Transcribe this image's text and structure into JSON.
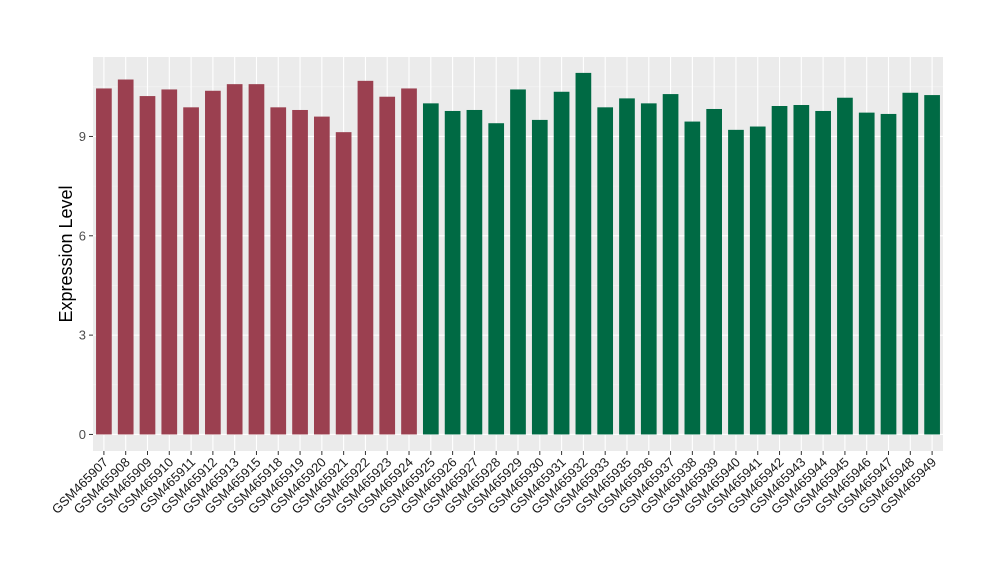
{
  "chart_data": {
    "type": "bar",
    "title": "",
    "xlabel": "",
    "ylabel": "Expression Level",
    "ylim": [
      -0.5,
      11.4
    ],
    "yticks": [
      0,
      3,
      6,
      9
    ],
    "grid": true,
    "background": "#ebebeb",
    "categories": [
      "GSM465907",
      "GSM465908",
      "GSM465909",
      "GSM465910",
      "GSM465911",
      "GSM465912",
      "GSM465913",
      "GSM465915",
      "GSM465918",
      "GSM465919",
      "GSM465920",
      "GSM465921",
      "GSM465922",
      "GSM465923",
      "GSM465924",
      "GSM465925",
      "GSM465926",
      "GSM465927",
      "GSM465928",
      "GSM465929",
      "GSM465930",
      "GSM465931",
      "GSM465932",
      "GSM465933",
      "GSM465935",
      "GSM465936",
      "GSM465937",
      "GSM465938",
      "GSM465939",
      "GSM465940",
      "GSM465941",
      "GSM465942",
      "GSM465943",
      "GSM465944",
      "GSM465945",
      "GSM465946",
      "GSM465947",
      "GSM465948",
      "GSM465949"
    ],
    "values": [
      10.45,
      10.72,
      10.22,
      10.42,
      9.88,
      10.38,
      10.58,
      10.58,
      9.88,
      9.8,
      9.6,
      9.13,
      10.68,
      10.2,
      10.45,
      10.0,
      9.77,
      9.8,
      9.4,
      10.42,
      9.5,
      10.35,
      10.92,
      9.88,
      10.15,
      10.0,
      10.28,
      9.45,
      9.83,
      9.2,
      9.3,
      9.92,
      9.95,
      9.77,
      10.17,
      9.72,
      9.68,
      10.32,
      10.25
    ],
    "group_colors": [
      "#9b4050",
      "#006a44"
    ],
    "groups": [
      0,
      0,
      0,
      0,
      0,
      0,
      0,
      0,
      0,
      0,
      0,
      0,
      0,
      0,
      0,
      1,
      1,
      1,
      1,
      1,
      1,
      1,
      1,
      1,
      1,
      1,
      1,
      1,
      1,
      1,
      1,
      1,
      1,
      1,
      1,
      1,
      1,
      1,
      1
    ]
  }
}
